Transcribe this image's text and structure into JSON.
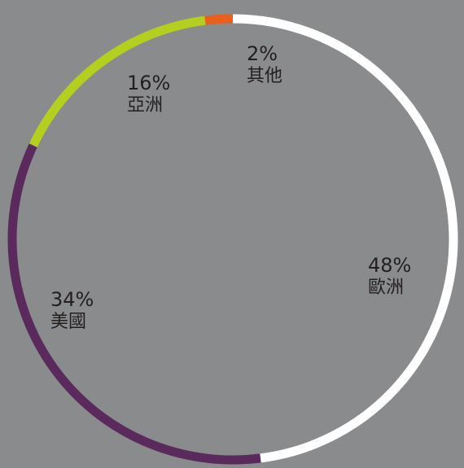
{
  "chart_data": {
    "type": "pie",
    "variant": "donut-ring",
    "start": "top",
    "direction": "clockwise",
    "slices": [
      {
        "name": "歐洲",
        "value": 48,
        "value_label": "48%",
        "color": "#ffffff"
      },
      {
        "name": "美國",
        "value": 34,
        "value_label": "34%",
        "color": "#5b2a5d"
      },
      {
        "name": "亞洲",
        "value": 16,
        "value_label": "16%",
        "color": "#b5cf1f"
      },
      {
        "name": "其他",
        "value": 2,
        "value_label": "2%",
        "color": "#e8601c"
      }
    ]
  }
}
